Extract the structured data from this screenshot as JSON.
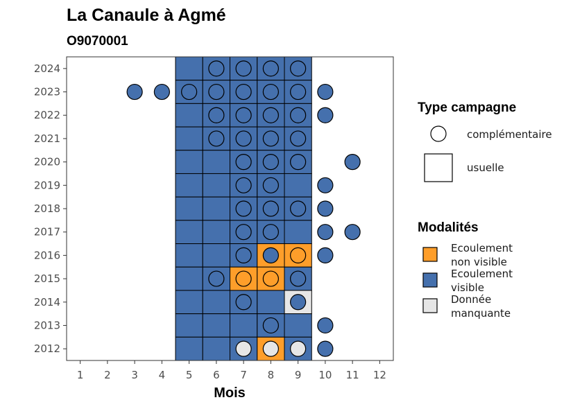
{
  "chart_data": {
    "type": "heatmap",
    "title": "La Canaule à Agmé",
    "subtitle": "O9070001",
    "xlabel": "Mois",
    "ylabel": "",
    "x_ticks": [
      "1",
      "2",
      "3",
      "4",
      "5",
      "6",
      "7",
      "8",
      "9",
      "10",
      "11",
      "12"
    ],
    "y_ticks": [
      "2012",
      "2013",
      "2014",
      "2015",
      "2016",
      "2017",
      "2018",
      "2019",
      "2020",
      "2021",
      "2022",
      "2023",
      "2024"
    ],
    "xlim": [
      0.5,
      12.5
    ],
    "ylim": [
      2011.5,
      2024.5
    ],
    "colors": {
      "Ecoulement non visible": "#FE9E2A",
      "Ecoulement visible": "#4570AD",
      "Donnée manquante": "#E6E6E6"
    },
    "legend_type": {
      "title": "Type campagne",
      "items": [
        "complémentaire",
        "usuelle"
      ]
    },
    "legend_modalites": {
      "title": "Modalités",
      "items": [
        {
          "lines": [
            "Ecoulement",
            "non visible"
          ],
          "color": "#FE9E2A"
        },
        {
          "lines": [
            "Ecoulement",
            "visible"
          ],
          "color": "#4570AD"
        },
        {
          "lines": [
            "Donnée",
            "manquante"
          ],
          "color": "#E6E6E6"
        }
      ]
    },
    "usuelle": [
      {
        "year": 2024,
        "months": [
          5,
          6,
          7,
          8,
          9
        ],
        "values": [
          "V",
          "V",
          "V",
          "V",
          "V"
        ]
      },
      {
        "year": 2023,
        "months": [
          5,
          6,
          7,
          8,
          9
        ],
        "values": [
          "V",
          "V",
          "V",
          "V",
          "V"
        ]
      },
      {
        "year": 2022,
        "months": [
          5,
          6,
          7,
          8,
          9
        ],
        "values": [
          "V",
          "V",
          "V",
          "V",
          "V"
        ]
      },
      {
        "year": 2021,
        "months": [
          5,
          6,
          7,
          8,
          9
        ],
        "values": [
          "V",
          "V",
          "V",
          "V",
          "V"
        ]
      },
      {
        "year": 2020,
        "months": [
          5,
          6,
          7,
          8,
          9
        ],
        "values": [
          "V",
          "V",
          "V",
          "V",
          "V"
        ]
      },
      {
        "year": 2019,
        "months": [
          5,
          6,
          7,
          8,
          9
        ],
        "values": [
          "V",
          "V",
          "V",
          "V",
          "V"
        ]
      },
      {
        "year": 2018,
        "months": [
          5,
          6,
          7,
          8,
          9
        ],
        "values": [
          "V",
          "V",
          "V",
          "V",
          "V"
        ]
      },
      {
        "year": 2017,
        "months": [
          5,
          6,
          7,
          8,
          9
        ],
        "values": [
          "V",
          "V",
          "V",
          "V",
          "V"
        ]
      },
      {
        "year": 2016,
        "months": [
          5,
          6,
          7,
          8,
          9
        ],
        "values": [
          "V",
          "V",
          "V",
          "N",
          "N"
        ]
      },
      {
        "year": 2015,
        "months": [
          5,
          6,
          7,
          8,
          9
        ],
        "values": [
          "V",
          "V",
          "N",
          "N",
          "V"
        ]
      },
      {
        "year": 2014,
        "months": [
          5,
          6,
          7,
          8,
          9
        ],
        "values": [
          "V",
          "V",
          "V",
          "V",
          "M"
        ]
      },
      {
        "year": 2013,
        "months": [
          5,
          6,
          7,
          8,
          9
        ],
        "values": [
          "V",
          "V",
          "V",
          "V",
          "V"
        ]
      },
      {
        "year": 2012,
        "months": [
          5,
          6,
          7,
          8,
          9
        ],
        "values": [
          "V",
          "V",
          "V",
          "N",
          "V"
        ]
      }
    ],
    "complementaire": [
      {
        "year": 2024,
        "points": [
          [
            6,
            "V"
          ],
          [
            7,
            "V"
          ],
          [
            8,
            "V"
          ],
          [
            9,
            "V"
          ]
        ]
      },
      {
        "year": 2023,
        "points": [
          [
            3,
            "V"
          ],
          [
            4,
            "V"
          ],
          [
            5,
            "V"
          ],
          [
            6,
            "V"
          ],
          [
            7,
            "V"
          ],
          [
            8,
            "V"
          ],
          [
            9,
            "V"
          ],
          [
            10,
            "V"
          ]
        ]
      },
      {
        "year": 2022,
        "points": [
          [
            6,
            "V"
          ],
          [
            7,
            "V"
          ],
          [
            8,
            "V"
          ],
          [
            9,
            "V"
          ],
          [
            10,
            "V"
          ]
        ]
      },
      {
        "year": 2021,
        "points": [
          [
            6,
            "V"
          ],
          [
            7,
            "V"
          ],
          [
            8,
            "V"
          ],
          [
            9,
            "V"
          ]
        ]
      },
      {
        "year": 2020,
        "points": [
          [
            7,
            "V"
          ],
          [
            8,
            "V"
          ],
          [
            9,
            "V"
          ],
          [
            11,
            "V"
          ]
        ]
      },
      {
        "year": 2019,
        "points": [
          [
            7,
            "V"
          ],
          [
            8,
            "V"
          ],
          [
            10,
            "V"
          ]
        ]
      },
      {
        "year": 2018,
        "points": [
          [
            7,
            "V"
          ],
          [
            8,
            "V"
          ],
          [
            9,
            "V"
          ],
          [
            10,
            "V"
          ]
        ]
      },
      {
        "year": 2017,
        "points": [
          [
            7,
            "V"
          ],
          [
            8,
            "V"
          ],
          [
            10,
            "V"
          ],
          [
            11,
            "V"
          ]
        ]
      },
      {
        "year": 2016,
        "points": [
          [
            7,
            "V"
          ],
          [
            8,
            "V"
          ],
          [
            9,
            "N"
          ],
          [
            10,
            "V"
          ]
        ]
      },
      {
        "year": 2015,
        "points": [
          [
            6,
            "V"
          ],
          [
            7,
            "N"
          ],
          [
            8,
            "N"
          ],
          [
            9,
            "V"
          ]
        ]
      },
      {
        "year": 2014,
        "points": [
          [
            7,
            "V"
          ],
          [
            9,
            "V"
          ]
        ]
      },
      {
        "year": 2013,
        "points": [
          [
            8,
            "V"
          ],
          [
            10,
            "V"
          ]
        ]
      },
      {
        "year": 2012,
        "points": [
          [
            7,
            "M"
          ],
          [
            8,
            "M"
          ],
          [
            9,
            "M"
          ],
          [
            10,
            "V"
          ]
        ]
      }
    ]
  }
}
